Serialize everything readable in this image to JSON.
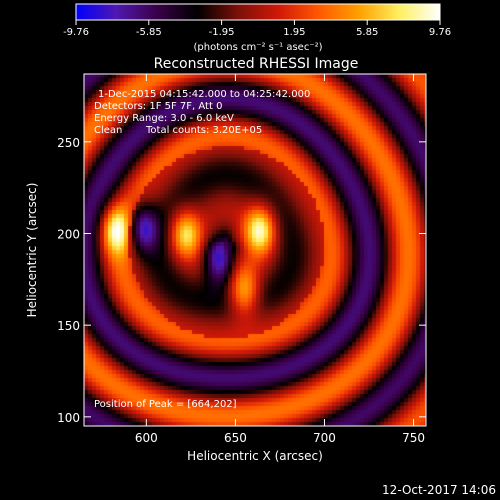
{
  "chart_data": {
    "type": "heatmap",
    "title": "Reconstructed RHESSI Image",
    "xlabel": "Heliocentric X (arcsec)",
    "ylabel": "Heliocentric Y (arcsec)",
    "xlim": [
      565,
      757
    ],
    "ylim": [
      95,
      287
    ],
    "x_ticks": [
      600,
      650,
      700,
      750
    ],
    "y_ticks": [
      100,
      150,
      200,
      250
    ],
    "colorbar": {
      "min": -9.76,
      "max": 9.76,
      "tick_labels": [
        "-9.76",
        "-5.85",
        "-1.95",
        "1.95",
        "5.85",
        "9.76"
      ],
      "unit_label": "(photons cm⁻² s⁻¹ asec⁻²)",
      "colors": [
        "#0000ff",
        "#5018b0",
        "#3a0048",
        "#000000",
        "#7a1008",
        "#d01808",
        "#ff5800",
        "#ffa000",
        "#fff060",
        "#ffffff"
      ]
    },
    "annotations": [
      "1-Dec-2015 04:15:42.000 to 04:25:42.000",
      "Detectors: 1F 5F 7F, Att 0",
      "Energy Range: 3.0 - 6.0 keV",
      "Clean",
      "Total counts: 3.20E+05"
    ],
    "peak_label": "Position of Peak = [664,202]",
    "peak": [
      664,
      202
    ],
    "sources": [
      {
        "x": 664,
        "y": 202,
        "value": 9.76
      },
      {
        "x": 622,
        "y": 200,
        "value": 8.6
      },
      {
        "x": 583,
        "y": 202,
        "value": 8.0
      },
      {
        "x": 655,
        "y": 168,
        "value": 7.6
      },
      {
        "x": 641,
        "y": 185,
        "value": -8.4
      },
      {
        "x": 598,
        "y": 203,
        "value": -7.6
      }
    ]
  },
  "footer": {
    "date": "12-Oct-2017 14:06"
  }
}
